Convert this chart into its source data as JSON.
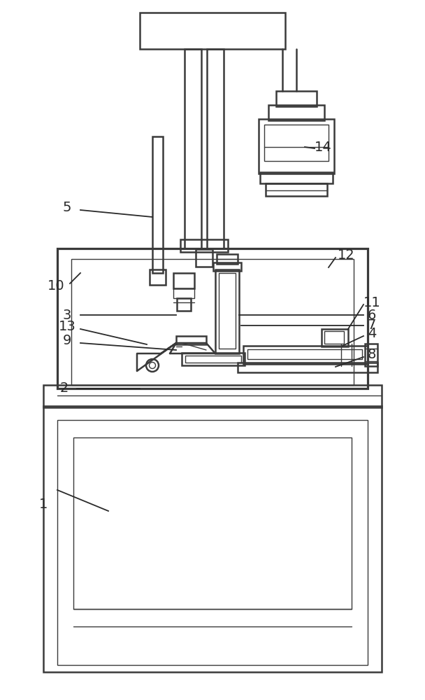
{
  "bg_color": "#ffffff",
  "lc": "#3a3a3a",
  "lw": 1.8,
  "tlw": 1.0
}
